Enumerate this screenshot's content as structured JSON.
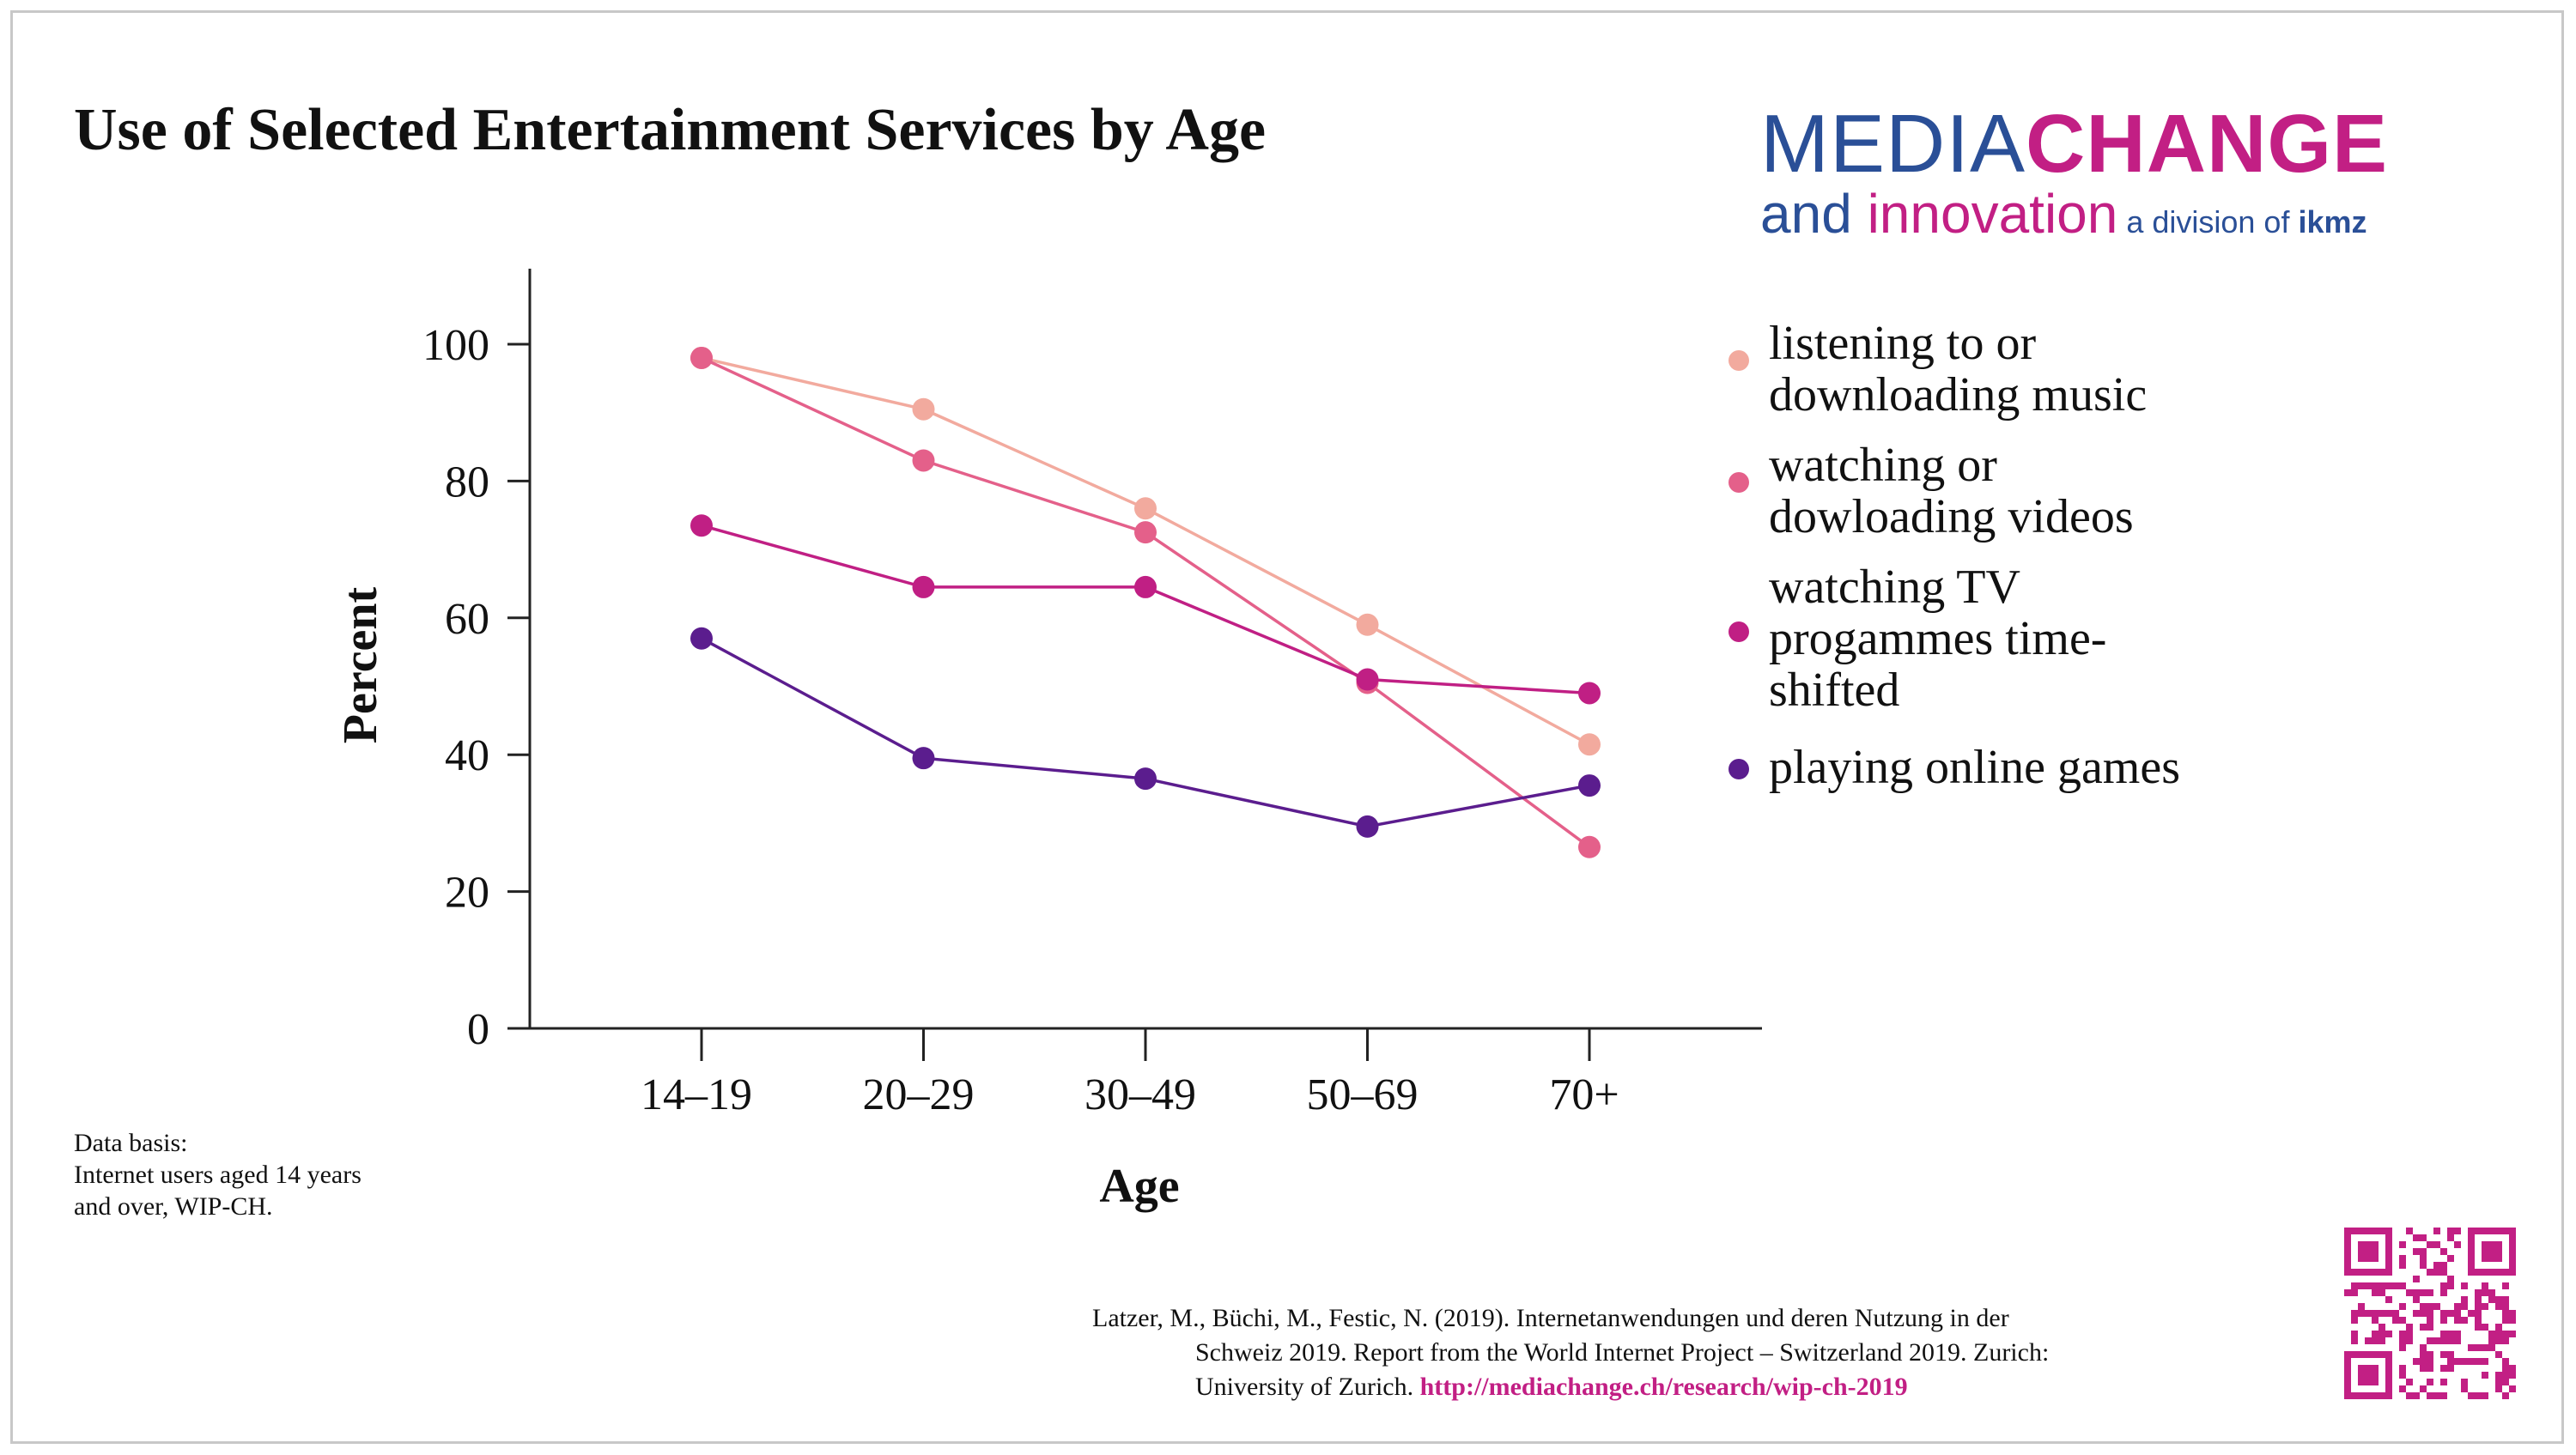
{
  "title": "Use of Selected Entertainment Services by Age",
  "logo": {
    "media": "MEDIA",
    "change": "CHANGE",
    "and": "and ",
    "innovation": "innovation",
    "division": " a division of ",
    "ikmz": "ikmz"
  },
  "note": {
    "line1": "Data basis:",
    "line2": "Internet users aged 14 years",
    "line3": "and over, WIP-CH."
  },
  "citation": {
    "line1": "Latzer, M., Büchi, M., Festic, N. (2019). Internetanwendungen und deren Nutzung in der",
    "line2": "Schweiz 2019. Report from the World Internet Project – Switzerland 2019. Zurich:",
    "line3": "University of Zurich. ",
    "link": "http://mediachange.ch/research/wip-ch-2019"
  },
  "chart_data": {
    "type": "line",
    "xlabel": "Age",
    "ylabel": "Percent",
    "categories": [
      "14–19",
      "20–29",
      "30–49",
      "50–69",
      "70+"
    ],
    "ylim": [
      0,
      110
    ],
    "yticks": [
      0,
      20,
      40,
      60,
      80,
      100
    ],
    "grid": false,
    "legend_position": "right",
    "series": [
      {
        "name": "listening to or downloading music",
        "legend_lines": [
          "listening to or",
          "downloading music"
        ],
        "color": "#f2aa9e",
        "values": [
          98,
          90.5,
          76,
          59,
          41.5
        ]
      },
      {
        "name": "watching or dowloading videos",
        "legend_lines": [
          "watching or",
          "dowloading videos"
        ],
        "color": "#e4608a",
        "values": [
          98,
          83,
          72.5,
          50.5,
          26.5
        ]
      },
      {
        "name": "watching TV progammes time-shifted",
        "legend_lines": [
          "watching TV",
          "progammes time-",
          "shifted"
        ],
        "color": "#c01f84",
        "values": [
          73.5,
          64.5,
          64.5,
          51,
          49
        ]
      },
      {
        "name": "playing online games",
        "legend_lines": [
          "playing online games"
        ],
        "color": "#5b1d8e",
        "values": [
          57,
          39.5,
          36.5,
          29.5,
          35.5
        ]
      }
    ]
  }
}
